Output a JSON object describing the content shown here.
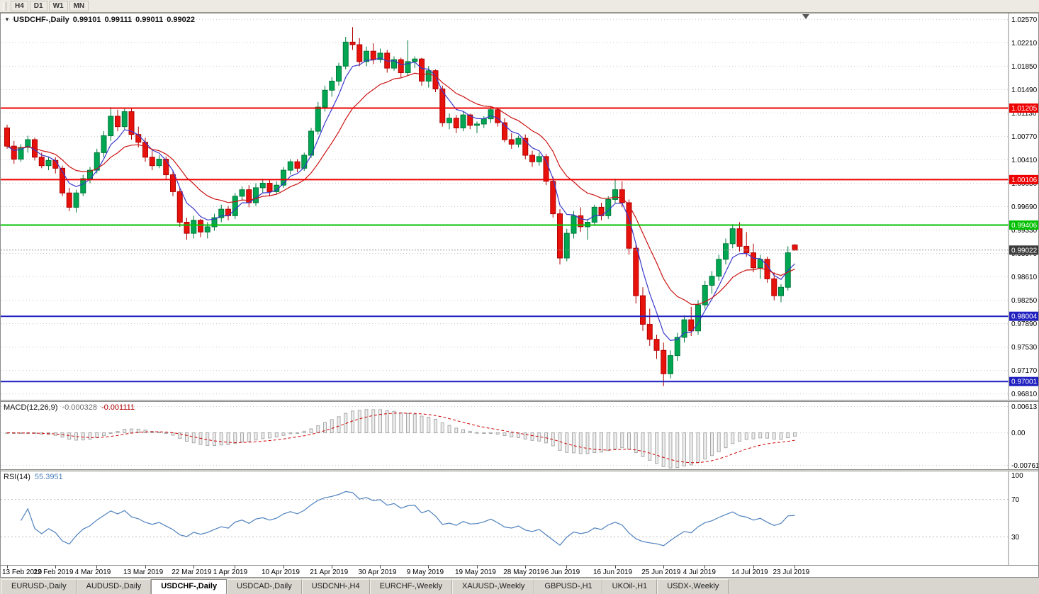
{
  "app": {
    "toolbar": {
      "timeframes": [
        "H4",
        "D1",
        "W1",
        "MN"
      ]
    },
    "tab_bar": {
      "tabs": [
        "EURUSD-,Daily",
        "AUDUSD-,Daily",
        "USDCHF-,Daily",
        "USDCAD-,Daily",
        "USDCNH-,H4",
        "EURCHF-,Weekly",
        "XAUUSD-,Weekly",
        "GBPUSD-,H1",
        "UKOil-,H1",
        "USDX-,Weekly"
      ],
      "active_tab": "USDCHF-,Daily"
    }
  },
  "chart_header": {
    "symbol": "USDCHF-,Daily",
    "open": "0.99101",
    "high": "0.99111",
    "low": "0.99011",
    "close": "0.99022"
  },
  "indicators": {
    "macd": {
      "label": "MACD(12,26,9)",
      "main_value": "-0.000328",
      "signal_value": "-0.001111"
    },
    "rsi": {
      "label": "RSI(14)",
      "value": "55.3951"
    }
  },
  "chart_data": {
    "type": "candlestick",
    "symbol": "USDCHF",
    "timeframe": "Daily",
    "ohlc": [
      [
        1.009,
        1.0095,
        1.0058,
        1.0062
      ],
      [
        1.0062,
        1.007,
        1.0035,
        1.0042
      ],
      [
        1.0042,
        1.0065,
        1.0038,
        1.006
      ],
      [
        1.006,
        1.0078,
        1.0052,
        1.0072
      ],
      [
        1.0072,
        1.0075,
        1.004,
        1.0045
      ],
      [
        1.0045,
        1.0052,
        1.0028,
        1.0032
      ],
      [
        1.0032,
        1.0045,
        1.0025,
        1.004
      ],
      [
        1.004,
        1.0045,
        1.002,
        1.0028
      ],
      [
        1.0028,
        1.0032,
        0.9985,
        0.999
      ],
      [
        0.999,
        0.9998,
        0.9962,
        0.9968
      ],
      [
        0.9968,
        0.9995,
        0.996,
        0.999
      ],
      [
        0.999,
        1.0018,
        0.9985,
        1.0012
      ],
      [
        1.0012,
        1.003,
        1.0005,
        1.0025
      ],
      [
        1.0025,
        1.0058,
        1.002,
        1.0052
      ],
      [
        1.0052,
        1.0085,
        1.0045,
        1.0078
      ],
      [
        1.0078,
        1.0122,
        1.007,
        1.0108
      ],
      [
        1.0108,
        1.0118,
        1.0085,
        1.0092
      ],
      [
        1.0092,
        1.0121,
        1.0088,
        1.0115
      ],
      [
        1.0115,
        1.012,
        1.0072,
        1.008
      ],
      [
        1.008,
        1.0092,
        1.006,
        1.0068
      ],
      [
        1.0068,
        1.0075,
        1.0038,
        1.0045
      ],
      [
        1.0045,
        1.0055,
        1.0025,
        1.0032
      ],
      [
        1.0032,
        1.0048,
        1.0028,
        1.0042
      ],
      [
        1.0042,
        1.0046,
        1.001,
        1.0018
      ],
      [
        1.0018,
        1.0025,
        0.9985,
        0.9992
      ],
      [
        0.9992,
        0.9998,
        0.9938,
        0.9945
      ],
      [
        0.9945,
        0.9952,
        0.9918,
        0.9928
      ],
      [
        0.9928,
        0.9955,
        0.992,
        0.9948
      ],
      [
        0.9948,
        0.995,
        0.9922,
        0.993
      ],
      [
        0.993,
        0.9945,
        0.992,
        0.9938
      ],
      [
        0.9938,
        0.9958,
        0.9932,
        0.9952
      ],
      [
        0.9952,
        0.9972,
        0.9945,
        0.9965
      ],
      [
        0.9965,
        0.997,
        0.9948,
        0.9955
      ],
      [
        0.9955,
        0.999,
        0.995,
        0.9985
      ],
      [
        0.9985,
        1.0,
        0.9978,
        0.9995
      ],
      [
        0.9995,
        1.0002,
        0.9968,
        0.9975
      ],
      [
        0.9975,
        1.0005,
        0.997,
        0.9998
      ],
      [
        0.9998,
        1.0012,
        0.999,
        1.0005
      ],
      [
        1.0005,
        1.001,
        0.9985,
        0.9992
      ],
      [
        0.9992,
        1.0008,
        0.9988,
        1.0002
      ],
      [
        1.0002,
        1.003,
        0.9998,
        1.0025
      ],
      [
        1.0025,
        1.0042,
        1.0018,
        1.0038
      ],
      [
        1.0038,
        1.0042,
        1.0022,
        1.0028
      ],
      [
        1.0028,
        1.0052,
        1.0024,
        1.0048
      ],
      [
        1.0048,
        1.009,
        1.0044,
        1.0085
      ],
      [
        1.0085,
        1.013,
        1.008,
        1.0122
      ],
      [
        1.0122,
        1.0155,
        1.0115,
        1.0148
      ],
      [
        1.0148,
        1.0168,
        1.0138,
        1.0162
      ],
      [
        1.0162,
        1.019,
        1.0155,
        1.0185
      ],
      [
        1.0185,
        1.023,
        1.018,
        1.0222
      ],
      [
        1.0222,
        1.0245,
        1.021,
        1.0218
      ],
      [
        1.0218,
        1.0228,
        1.0185,
        1.0192
      ],
      [
        1.0192,
        1.0215,
        1.0185,
        1.0208
      ],
      [
        1.0208,
        1.022,
        1.0188,
        1.0195
      ],
      [
        1.0195,
        1.0212,
        1.019,
        1.0205
      ],
      [
        1.0205,
        1.021,
        1.0175,
        1.0182
      ],
      [
        1.0182,
        1.02,
        1.0178,
        1.0195
      ],
      [
        1.0195,
        1.0198,
        1.0168,
        1.0175
      ],
      [
        1.0175,
        1.0225,
        1.017,
        1.0192
      ],
      [
        1.0192,
        1.02,
        1.0182,
        1.0196
      ],
      [
        1.0196,
        1.0198,
        1.0155,
        1.0162
      ],
      [
        1.0162,
        1.0185,
        1.0152,
        1.0178
      ],
      [
        1.0178,
        1.018,
        1.0145,
        1.015
      ],
      [
        1.015,
        1.0155,
        1.0092,
        1.0098
      ],
      [
        1.0098,
        1.0112,
        1.0088,
        1.0105
      ],
      [
        1.0105,
        1.011,
        1.0082,
        1.009
      ],
      [
        1.009,
        1.0115,
        1.0085,
        1.011
      ],
      [
        1.011,
        1.0112,
        1.0088,
        1.0094
      ],
      [
        1.0094,
        1.01,
        1.0082,
        1.0096
      ],
      [
        1.0096,
        1.0108,
        1.009,
        1.0104
      ],
      [
        1.0104,
        1.0122,
        1.0098,
        1.0118
      ],
      [
        1.0118,
        1.012,
        1.0092,
        1.0098
      ],
      [
        1.0098,
        1.0105,
        1.0068,
        1.0072
      ],
      [
        1.0072,
        1.0082,
        1.0058,
        1.0065
      ],
      [
        1.0065,
        1.0078,
        1.006,
        1.0074
      ],
      [
        1.0074,
        1.008,
        1.0042,
        1.0048
      ],
      [
        1.0048,
        1.0055,
        1.003,
        1.0038
      ],
      [
        1.0038,
        1.0052,
        1.0032,
        1.0046
      ],
      [
        1.0046,
        1.005,
        1.0002,
        1.0008
      ],
      [
        1.0008,
        1.0015,
        0.9952,
        0.9958
      ],
      [
        0.9958,
        0.9965,
        0.988,
        0.989
      ],
      [
        0.989,
        0.9935,
        0.9885,
        0.9928
      ],
      [
        0.9928,
        0.9962,
        0.992,
        0.9955
      ],
      [
        0.9955,
        0.9968,
        0.993,
        0.9938
      ],
      [
        0.9938,
        0.995,
        0.9918,
        0.9945
      ],
      [
        0.9945,
        0.9972,
        0.994,
        0.9968
      ],
      [
        0.9968,
        0.9975,
        0.9948,
        0.9955
      ],
      [
        0.9955,
        0.9985,
        0.995,
        0.998
      ],
      [
        0.998,
        1.0012,
        0.9975,
        0.9995
      ],
      [
        0.9995,
        1.0008,
        0.9968,
        0.9975
      ],
      [
        0.9975,
        0.998,
        0.9895,
        0.9905
      ],
      [
        0.9905,
        0.9912,
        0.982,
        0.9832
      ],
      [
        0.9832,
        0.9845,
        0.9778,
        0.9788
      ],
      [
        0.9788,
        0.9812,
        0.9755,
        0.9765
      ],
      [
        0.9765,
        0.9772,
        0.9735,
        0.9748
      ],
      [
        0.9748,
        0.976,
        0.9693,
        0.9712
      ],
      [
        0.9712,
        0.9748,
        0.9705,
        0.974
      ],
      [
        0.974,
        0.9775,
        0.9732,
        0.9768
      ],
      [
        0.9768,
        0.9802,
        0.976,
        0.9795
      ],
      [
        0.9795,
        0.9815,
        0.977,
        0.9778
      ],
      [
        0.9778,
        0.9825,
        0.9772,
        0.9818
      ],
      [
        0.9818,
        0.9855,
        0.9812,
        0.9848
      ],
      [
        0.9848,
        0.987,
        0.9835,
        0.9862
      ],
      [
        0.9862,
        0.9895,
        0.9855,
        0.9888
      ],
      [
        0.9888,
        0.992,
        0.988,
        0.9912
      ],
      [
        0.9912,
        0.9942,
        0.9905,
        0.9935
      ],
      [
        0.9935,
        0.9945,
        0.99,
        0.9908
      ],
      [
        0.9908,
        0.993,
        0.9892,
        0.9898
      ],
      [
        0.9898,
        0.9912,
        0.9868,
        0.9875
      ],
      [
        0.9875,
        0.9895,
        0.9858,
        0.9888
      ],
      [
        0.9888,
        0.9892,
        0.9852,
        0.9858
      ],
      [
        0.9858,
        0.9868,
        0.9825,
        0.9832
      ],
      [
        0.9832,
        0.985,
        0.9822,
        0.9845
      ],
      [
        0.9845,
        0.9908,
        0.984,
        0.9898
      ],
      [
        0.99101,
        0.99111,
        0.99011,
        0.99022
      ]
    ],
    "x_axis": {
      "labels": [
        {
          "i": 0,
          "label": "13 Feb 2019"
        },
        {
          "i": 7,
          "label": "22 Feb 2019"
        },
        {
          "i": 13,
          "label": "4 Mar 2019"
        },
        {
          "i": 20,
          "label": "13 Mar 2019"
        },
        {
          "i": 27,
          "label": "22 Mar 2019"
        },
        {
          "i": 33,
          "label": "1 Apr 2019"
        },
        {
          "i": 40,
          "label": "10 Apr 2019"
        },
        {
          "i": 47,
          "label": "21 Apr 2019"
        },
        {
          "i": 54,
          "label": "30 Apr 2019"
        },
        {
          "i": 61,
          "label": "9 May 2019"
        },
        {
          "i": 68,
          "label": "19 May 2019"
        },
        {
          "i": 75,
          "label": "28 May 2019"
        },
        {
          "i": 81,
          "label": "6 Jun 2019"
        },
        {
          "i": 88,
          "label": "16 Jun 2019"
        },
        {
          "i": 95,
          "label": "25 Jun 2019"
        },
        {
          "i": 101,
          "label": "4 Jul 2019"
        },
        {
          "i": 108,
          "label": "14 Jul 2019"
        },
        {
          "i": 114,
          "label": "23 Jul 2019"
        }
      ]
    },
    "y_axis": {
      "ticks": [
        "1.02570",
        "1.02210",
        "1.01850",
        "1.01490",
        "1.01130",
        "1.00770",
        "1.00410",
        "1.00050",
        "0.99690",
        "0.99330",
        "0.98970",
        "0.98610",
        "0.98250",
        "0.97890",
        "0.97530",
        "0.97170",
        "0.96810"
      ],
      "ylim": [
        0.9672,
        1.0266
      ]
    },
    "levels": [
      {
        "value": 1.01205,
        "label": "1.01205",
        "color": "#EE0000"
      },
      {
        "value": 1.00106,
        "label": "1.00106",
        "color": "#EE0000"
      },
      {
        "value": 0.99406,
        "label": "0.99406",
        "color": "#00C000"
      },
      {
        "value": 0.98004,
        "label": "0.98004",
        "color": "#2020C0"
      },
      {
        "value": 0.97001,
        "label": "0.97001",
        "color": "#2020C0"
      }
    ],
    "bid_price": {
      "value": 0.99022,
      "label": "0.99022",
      "badge_color": "#3C3C3C"
    },
    "moving_averages": [
      {
        "period": 5,
        "color": "#3838CC",
        "type": "fast"
      },
      {
        "period": 13,
        "color": "#CC1111",
        "type": "slow"
      }
    ],
    "macd_panel": {
      "params": [
        12,
        26,
        9
      ],
      "y_ticks": [
        "0.00613",
        "0.00",
        "-0.00761"
      ],
      "ylim": [
        -0.0085,
        0.0072
      ],
      "histogram_fill": "#EDEDED",
      "histogram_stroke": "#A8A8A8",
      "signal_color": "#CC0000"
    },
    "rsi_panel": {
      "period": 14,
      "y_ticks": [
        "100",
        "70",
        "30"
      ],
      "level_lines": [
        70,
        30
      ],
      "ylim": [
        0,
        100
      ],
      "line_color": "#4E81BD"
    },
    "candle_colors": {
      "up_fill": "#00A651",
      "up_stroke": "#007A3C",
      "down_fill": "#E8120C",
      "down_stroke": "#B00000"
    }
  }
}
